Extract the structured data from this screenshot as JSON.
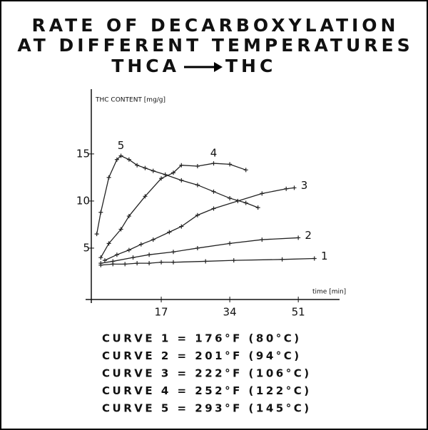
{
  "chart_data": {
    "type": "line",
    "title": [
      "RATE OF DECARBOXYLATION",
      "AT DIFFERENT TEMPERATURES"
    ],
    "subtitle": {
      "from": "THCA",
      "to": "THC"
    },
    "y_label": "THC CONTENT [mg/g]",
    "x_label": "time [min]",
    "xlim": [
      0,
      60
    ],
    "ylim": [
      0,
      21.5
    ],
    "xticks": [
      17,
      34,
      51
    ],
    "yticks": [
      5,
      10,
      15
    ],
    "color": "#222222",
    "series": [
      {
        "name": "1",
        "x": [
          2,
          5,
          8,
          11,
          14,
          17,
          20,
          28,
          35,
          47,
          55
        ],
        "values": [
          3.2,
          3.3,
          3.3,
          3.4,
          3.4,
          3.5,
          3.5,
          3.6,
          3.7,
          3.8,
          3.9
        ]
      },
      {
        "name": "2",
        "x": [
          2,
          5,
          10,
          14,
          20,
          26,
          34,
          42,
          51
        ],
        "values": [
          3.4,
          3.6,
          4.0,
          4.3,
          4.6,
          5.0,
          5.5,
          5.9,
          6.1
        ]
      },
      {
        "name": "3",
        "x": [
          3,
          6,
          9,
          12,
          15,
          19,
          22,
          26,
          30,
          36,
          42,
          48,
          50
        ],
        "values": [
          3.7,
          4.3,
          4.8,
          5.4,
          5.9,
          6.7,
          7.3,
          8.5,
          9.2,
          10.0,
          10.8,
          11.3,
          11.4
        ]
      },
      {
        "name": "4",
        "x": [
          2,
          4,
          7,
          9,
          13,
          17,
          20,
          22,
          26,
          30,
          34,
          38
        ],
        "values": [
          4.0,
          5.5,
          7.0,
          8.4,
          10.5,
          12.4,
          13.0,
          13.8,
          13.7,
          14.0,
          13.9,
          13.3
        ]
      },
      {
        "name": "5",
        "x": [
          1,
          2,
          4,
          6,
          7,
          9,
          11,
          13,
          15,
          18,
          22,
          26,
          30,
          34,
          38,
          41
        ],
        "values": [
          6.5,
          8.8,
          12.5,
          14.4,
          14.8,
          14.4,
          13.8,
          13.5,
          13.2,
          12.8,
          12.2,
          11.7,
          11.0,
          10.3,
          9.8,
          9.3
        ]
      }
    ],
    "notes": [
      "CURVE 1 = 176°F (80°C)",
      "CURVE 2 = 201°F (94°C)",
      "CURVE 3 = 222°F (106°C)",
      "CURVE 4 = 252°F (122°C)",
      "CURVE 5 = 293°F (145°C)"
    ]
  }
}
